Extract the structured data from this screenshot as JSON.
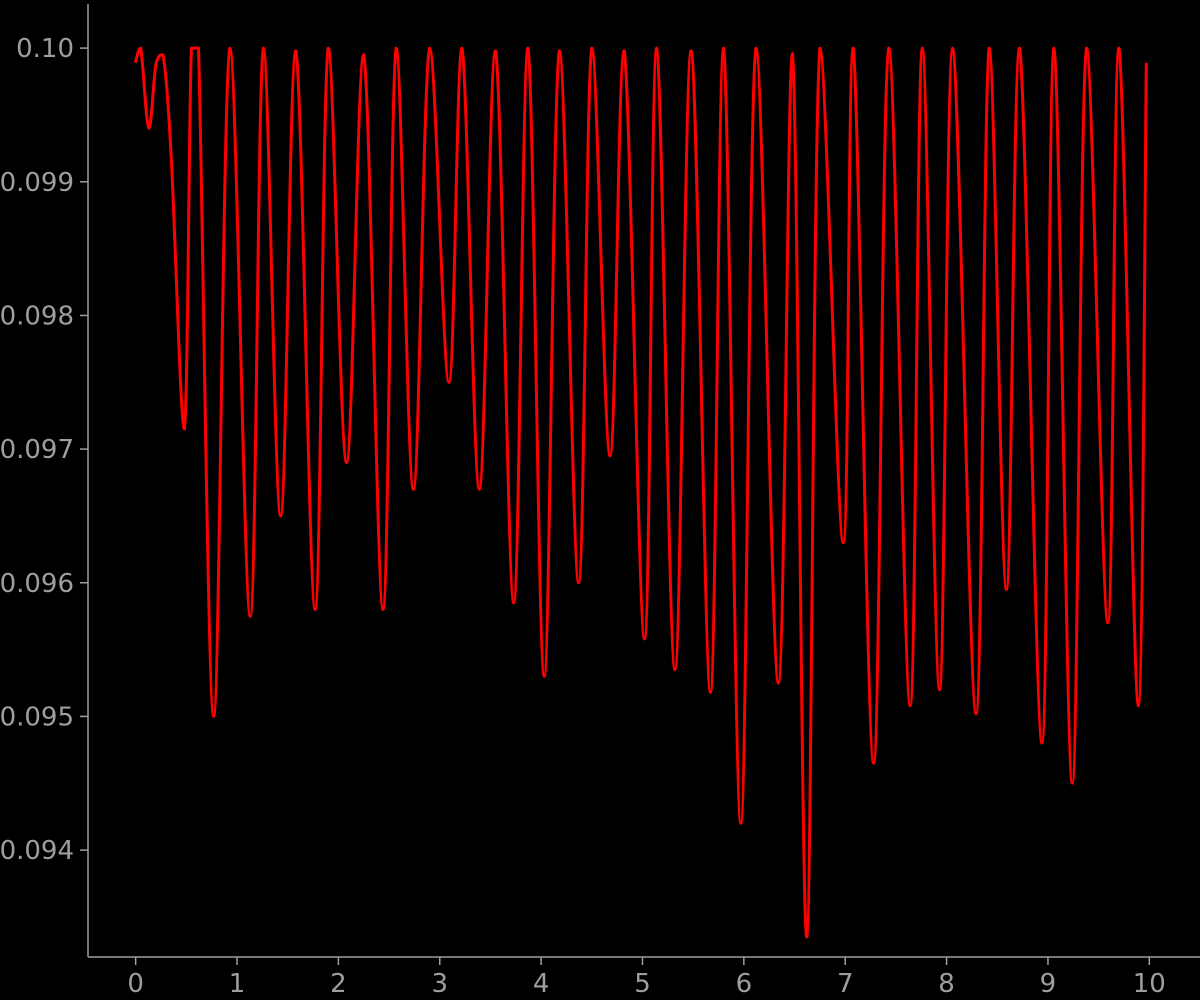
{
  "chart_data": {
    "type": "line",
    "title": "",
    "xlabel": "",
    "ylabel": "",
    "xlim": [
      -0.47,
      10.5
    ],
    "ylim": [
      0.0932,
      0.10033
    ],
    "x_ticks": [
      0,
      1,
      2,
      3,
      4,
      5,
      6,
      7,
      8,
      9,
      10
    ],
    "x_tick_labels": [
      "0",
      "1",
      "2",
      "3",
      "4",
      "5",
      "6",
      "7",
      "8",
      "9",
      "10"
    ],
    "y_ticks": [
      0.094,
      0.095,
      0.096,
      0.097,
      0.098,
      0.099,
      0.1
    ],
    "y_tick_labels": [
      "0.094",
      "0.095",
      "0.096",
      "0.097",
      "0.098",
      "0.099",
      "0.10"
    ],
    "grid": false,
    "legend": "none",
    "colors": {
      "background": "#000000",
      "axis": "#9e9e9e",
      "series": "#ff0000"
    },
    "series": [
      {
        "x": [
          0.0,
          0.05,
          0.13,
          0.2,
          0.27,
          0.35,
          0.48,
          0.55,
          0.62,
          0.77,
          0.93,
          1.13,
          1.26,
          1.43,
          1.58,
          1.77,
          1.9,
          2.08,
          2.25,
          2.44,
          2.57,
          2.74,
          2.9,
          3.09,
          3.22,
          3.39,
          3.55,
          3.73,
          3.87,
          4.03,
          4.18,
          4.37,
          4.5,
          4.68,
          4.82,
          5.02,
          5.14,
          5.32,
          5.48,
          5.67,
          5.8,
          5.97,
          6.12,
          6.34,
          6.48,
          6.62,
          6.75,
          6.98,
          7.08,
          7.28,
          7.43,
          7.64,
          7.76,
          7.93,
          8.06,
          8.29,
          8.42,
          8.59,
          8.72,
          8.94,
          9.06,
          9.24,
          9.38,
          9.59,
          9.7,
          9.89,
          9.97
        ],
        "y": [
          0.0999,
          0.1,
          0.0994,
          0.09988,
          0.09995,
          0.0992,
          0.09715,
          0.1,
          0.1,
          0.095,
          0.1,
          0.09575,
          0.1,
          0.0965,
          0.09998,
          0.0958,
          0.1,
          0.0969,
          0.09995,
          0.0958,
          0.1,
          0.0967,
          0.1,
          0.0975,
          0.1,
          0.0967,
          0.09998,
          0.09585,
          0.1,
          0.0953,
          0.09998,
          0.096,
          0.1,
          0.09695,
          0.09998,
          0.09558,
          0.1,
          0.09535,
          0.09998,
          0.09518,
          0.1,
          0.0942,
          0.1,
          0.09525,
          0.09996,
          0.09335,
          0.1,
          0.0963,
          0.1,
          0.09465,
          0.1,
          0.09508,
          0.1,
          0.0952,
          0.1,
          0.09502,
          0.1,
          0.09595,
          0.1,
          0.0948,
          0.1,
          0.0945,
          0.1,
          0.0957,
          0.1,
          0.09508,
          0.09988
        ]
      }
    ]
  }
}
